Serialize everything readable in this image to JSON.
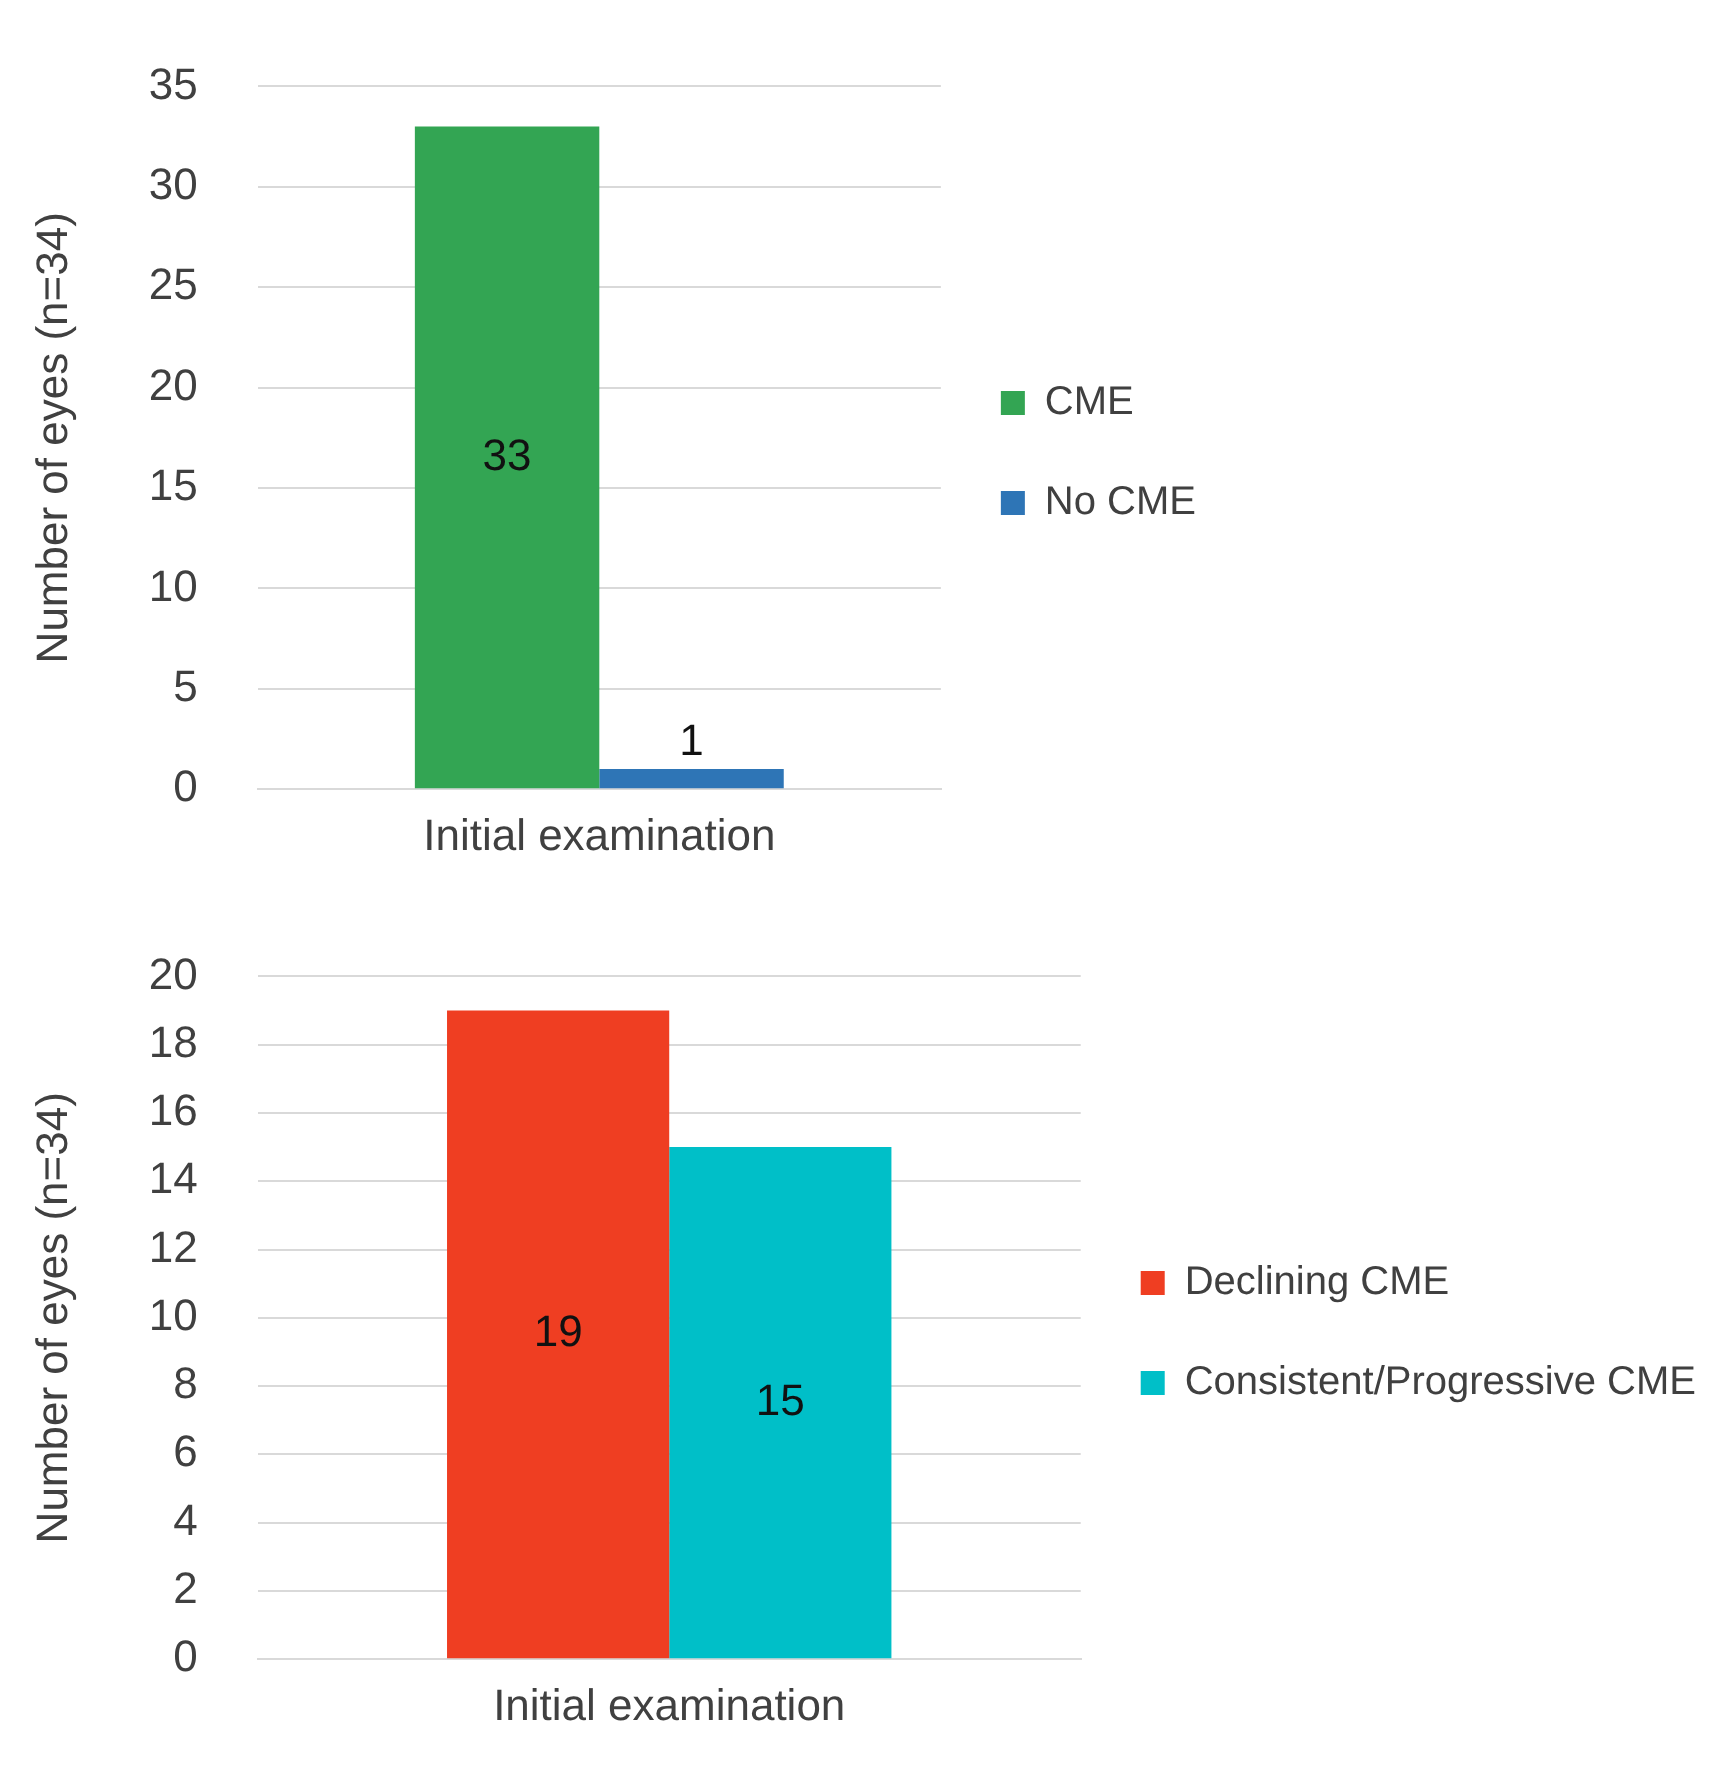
{
  "chart_data": [
    {
      "type": "bar",
      "ylabel": "Number of eyes (n=34)",
      "categories": [
        "Initial examination"
      ],
      "series": [
        {
          "name": "CME",
          "color": "#33a553",
          "values": [
            33
          ]
        },
        {
          "name": "No CME",
          "color": "#2e75b6",
          "values": [
            1
          ]
        }
      ],
      "ylim": [
        0,
        35
      ],
      "yticks": [
        0,
        5,
        10,
        15,
        20,
        25,
        30,
        35
      ],
      "grid": "y",
      "legend": "right",
      "data_labels": true
    },
    {
      "type": "bar",
      "ylabel": "Number of eyes (n=34)",
      "categories": [
        "Initial examination"
      ],
      "series": [
        {
          "name": "Declining CME",
          "color": "#ef3e22",
          "values": [
            19
          ]
        },
        {
          "name": "Consistent/Progressive CME",
          "color": "#00bfc8",
          "values": [
            15
          ]
        }
      ],
      "ylim": [
        0,
        20
      ],
      "yticks": [
        0,
        2,
        4,
        6,
        8,
        10,
        12,
        14,
        16,
        18,
        20
      ],
      "grid": "y",
      "legend": "right",
      "data_labels": true
    }
  ]
}
